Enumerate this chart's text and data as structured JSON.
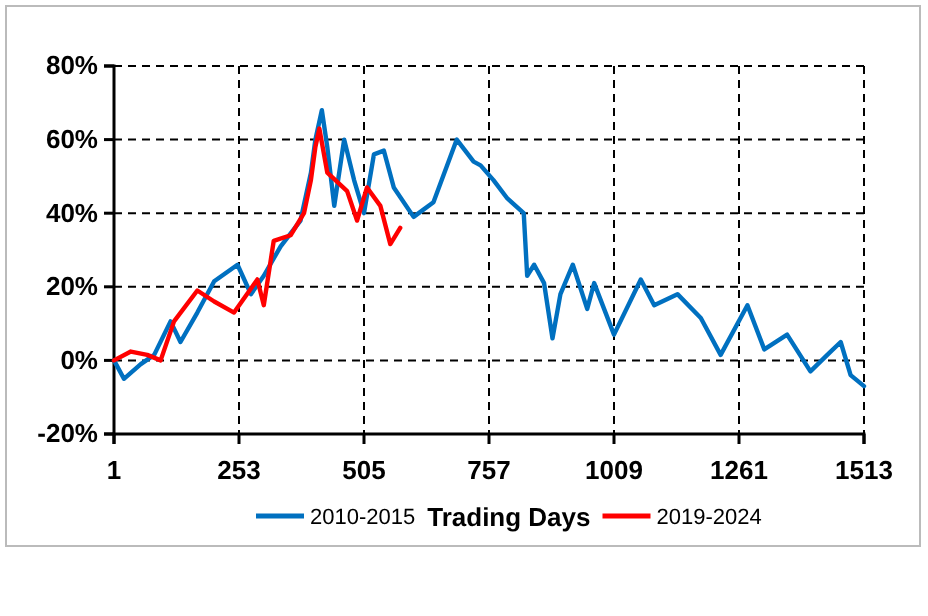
{
  "chart_data": {
    "type": "line",
    "xlabel": "Trading Days",
    "xlim": [
      1,
      1513
    ],
    "xticks": [
      1,
      253,
      505,
      757,
      1009,
      1261,
      1513
    ],
    "ylim": [
      -20,
      80
    ],
    "yticks": [
      {
        "value": -20,
        "label": "-20%"
      },
      {
        "value": 0,
        "label": "0%"
      },
      {
        "value": 20,
        "label": "20%"
      },
      {
        "value": 40,
        "label": "40%"
      },
      {
        "value": 60,
        "label": "60%"
      },
      {
        "value": 80,
        "label": "80%"
      }
    ],
    "grid": true,
    "legend": "bottom",
    "line_style": "solid",
    "marker": "none",
    "series": [
      {
        "name": "2010-2015",
        "color": "#0070c0",
        "x": [
          1,
          21,
          55,
          82,
          115,
          135,
          169,
          203,
          250,
          277,
          303,
          337,
          377,
          398,
          407,
          420,
          431,
          445,
          465,
          485,
          505,
          525,
          545,
          565,
          605,
          645,
          692,
          726,
          740,
          766,
          794,
          827,
          834,
          848,
          868,
          885,
          901,
          926,
          955,
          969,
          1009,
          1063,
          1090,
          1137,
          1184,
          1224,
          1278,
          1312,
          1358,
          1405,
          1439,
          1466,
          1486,
          1513
        ],
        "values": [
          0,
          -5,
          -1,
          1.5,
          10.6,
          5,
          13,
          21.5,
          26,
          18,
          23,
          31,
          38,
          51,
          60,
          68,
          58,
          42,
          60,
          49,
          40,
          56,
          57,
          47,
          39,
          43,
          60,
          54,
          53,
          49,
          44,
          40,
          23,
          26,
          21,
          6,
          18,
          26,
          14,
          21,
          7,
          22,
          15,
          18,
          11.5,
          1.5,
          15,
          3,
          7,
          -3,
          1.5,
          5,
          -4,
          -7
        ]
      },
      {
        "name": "2019-2024",
        "color": "#ff0000",
        "x": [
          1,
          35,
          68,
          95,
          122,
          169,
          203,
          243,
          290,
          303,
          323,
          357,
          384,
          398,
          407,
          415,
          431,
          471,
          491,
          511,
          538,
          558,
          578
        ],
        "values": [
          0,
          2.4,
          1.5,
          0,
          10.6,
          19,
          16,
          13,
          22,
          15,
          32.5,
          34,
          40,
          49,
          58,
          63,
          51,
          46,
          38,
          47,
          42,
          31.6,
          36
        ]
      }
    ]
  }
}
